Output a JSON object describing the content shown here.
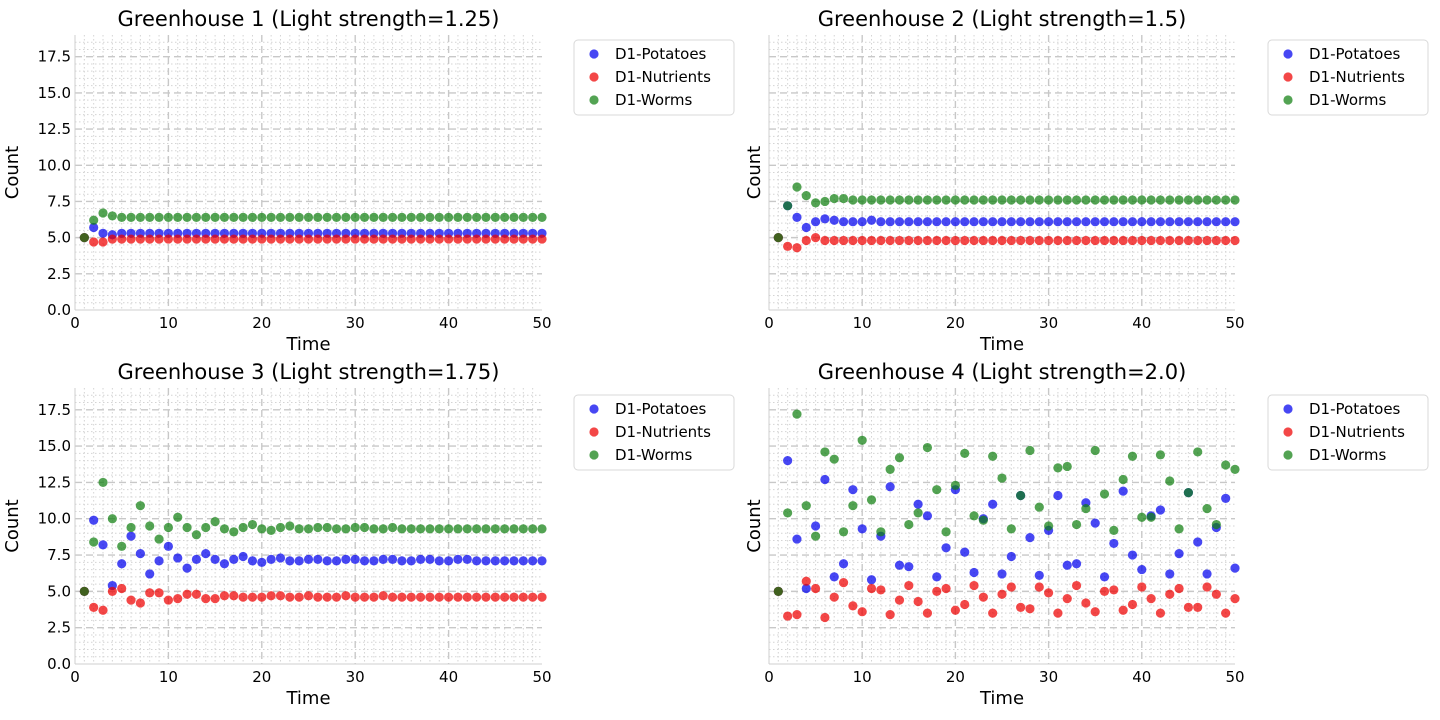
{
  "chart_data": [
    {
      "type": "scatter",
      "title": "Greenhouse 1 (Light strength=1.25)",
      "xlabel": "Time",
      "ylabel": "Count",
      "xlim": [
        0,
        50
      ],
      "ylim": [
        0,
        19
      ],
      "xticks": [
        "0",
        "10",
        "20",
        "30",
        "40",
        "50"
      ],
      "yticks": [
        "0.0",
        "2.5",
        "5.0",
        "7.5",
        "10.0",
        "12.5",
        "15.0",
        "17.5"
      ],
      "show_ytick_labels": true,
      "grid": true,
      "legend": "outside-upper-right",
      "series": [
        {
          "name": "D1-Potatoes",
          "color": "#0000ee",
          "values": [
            5.0,
            5.7,
            5.3,
            5.2,
            5.3,
            5.3,
            5.3,
            5.3,
            5.3,
            5.3,
            5.3,
            5.3,
            5.3,
            5.3,
            5.3,
            5.3,
            5.3,
            5.3,
            5.3,
            5.3,
            5.3,
            5.3,
            5.3,
            5.3,
            5.3,
            5.3,
            5.3,
            5.3,
            5.3,
            5.3,
            5.3,
            5.3,
            5.3,
            5.3,
            5.3,
            5.3,
            5.3,
            5.3,
            5.3,
            5.3,
            5.3,
            5.3,
            5.3,
            5.3,
            5.3,
            5.3,
            5.3,
            5.3,
            5.3,
            5.3
          ]
        },
        {
          "name": "D1-Nutrients",
          "color": "#ee0000",
          "values": [
            5.0,
            4.7,
            4.7,
            4.9,
            4.9,
            4.9,
            4.9,
            4.9,
            4.9,
            4.9,
            4.9,
            4.9,
            4.9,
            4.9,
            4.9,
            4.9,
            4.9,
            4.9,
            4.9,
            4.9,
            4.9,
            4.9,
            4.9,
            4.9,
            4.9,
            4.9,
            4.9,
            4.9,
            4.9,
            4.9,
            4.9,
            4.9,
            4.9,
            4.9,
            4.9,
            4.9,
            4.9,
            4.9,
            4.9,
            4.9,
            4.9,
            4.9,
            4.9,
            4.9,
            4.9,
            4.9,
            4.9,
            4.9,
            4.9,
            4.9
          ]
        },
        {
          "name": "D1-Worms",
          "color": "#108010",
          "values": [
            5.0,
            6.2,
            6.7,
            6.5,
            6.4,
            6.4,
            6.4,
            6.4,
            6.4,
            6.4,
            6.4,
            6.4,
            6.4,
            6.4,
            6.4,
            6.4,
            6.4,
            6.4,
            6.4,
            6.4,
            6.4,
            6.4,
            6.4,
            6.4,
            6.4,
            6.4,
            6.4,
            6.4,
            6.4,
            6.4,
            6.4,
            6.4,
            6.4,
            6.4,
            6.4,
            6.4,
            6.4,
            6.4,
            6.4,
            6.4,
            6.4,
            6.4,
            6.4,
            6.4,
            6.4,
            6.4,
            6.4,
            6.4,
            6.4,
            6.4
          ]
        }
      ]
    },
    {
      "type": "scatter",
      "title": "Greenhouse 2 (Light strength=1.5)",
      "xlabel": "Time",
      "ylabel": "Count",
      "xlim": [
        0,
        50
      ],
      "ylim": [
        0,
        19
      ],
      "xticks": [
        "0",
        "10",
        "20",
        "30",
        "40",
        "50"
      ],
      "yticks": [
        "0.0",
        "2.5",
        "5.0",
        "7.5",
        "10.0",
        "12.5",
        "15.0",
        "17.5"
      ],
      "show_ytick_labels": false,
      "grid": true,
      "legend": "outside-upper-right",
      "series": [
        {
          "name": "D1-Potatoes",
          "color": "#0000ee",
          "values": [
            5.0,
            7.2,
            6.4,
            5.7,
            6.1,
            6.3,
            6.2,
            6.1,
            6.1,
            6.1,
            6.2,
            6.1,
            6.1,
            6.1,
            6.1,
            6.1,
            6.1,
            6.1,
            6.1,
            6.1,
            6.1,
            6.1,
            6.1,
            6.1,
            6.1,
            6.1,
            6.1,
            6.1,
            6.1,
            6.1,
            6.1,
            6.1,
            6.1,
            6.1,
            6.1,
            6.1,
            6.1,
            6.1,
            6.1,
            6.1,
            6.1,
            6.1,
            6.1,
            6.1,
            6.1,
            6.1,
            6.1,
            6.1,
            6.1,
            6.1
          ]
        },
        {
          "name": "D1-Nutrients",
          "color": "#ee0000",
          "values": [
            5.0,
            4.4,
            4.3,
            4.8,
            5.0,
            4.8,
            4.8,
            4.8,
            4.8,
            4.8,
            4.8,
            4.8,
            4.8,
            4.8,
            4.8,
            4.8,
            4.8,
            4.8,
            4.8,
            4.8,
            4.8,
            4.8,
            4.8,
            4.8,
            4.8,
            4.8,
            4.8,
            4.8,
            4.8,
            4.8,
            4.8,
            4.8,
            4.8,
            4.8,
            4.8,
            4.8,
            4.8,
            4.8,
            4.8,
            4.8,
            4.8,
            4.8,
            4.8,
            4.8,
            4.8,
            4.8,
            4.8,
            4.8,
            4.8,
            4.8
          ]
        },
        {
          "name": "D1-Worms",
          "color": "#108010",
          "values": [
            5.0,
            7.2,
            8.5,
            7.9,
            7.4,
            7.5,
            7.7,
            7.7,
            7.6,
            7.6,
            7.6,
            7.6,
            7.6,
            7.6,
            7.6,
            7.6,
            7.6,
            7.6,
            7.6,
            7.6,
            7.6,
            7.6,
            7.6,
            7.6,
            7.6,
            7.6,
            7.6,
            7.6,
            7.6,
            7.6,
            7.6,
            7.6,
            7.6,
            7.6,
            7.6,
            7.6,
            7.6,
            7.6,
            7.6,
            7.6,
            7.6,
            7.6,
            7.6,
            7.6,
            7.6,
            7.6,
            7.6,
            7.6,
            7.6,
            7.6
          ]
        }
      ]
    },
    {
      "type": "scatter",
      "title": "Greenhouse 3 (Light strength=1.75)",
      "xlabel": "Time",
      "ylabel": "Count",
      "xlim": [
        0,
        50
      ],
      "ylim": [
        0,
        19
      ],
      "xticks": [
        "0",
        "10",
        "20",
        "30",
        "40",
        "50"
      ],
      "yticks": [
        "0.0",
        "2.5",
        "5.0",
        "7.5",
        "10.0",
        "12.5",
        "15.0",
        "17.5"
      ],
      "show_ytick_labels": true,
      "grid": true,
      "legend": "outside-upper-right",
      "series": [
        {
          "name": "D1-Potatoes",
          "color": "#0000ee",
          "values": [
            5.0,
            9.9,
            8.2,
            5.4,
            6.9,
            8.8,
            7.6,
            6.2,
            7.1,
            8.1,
            7.3,
            6.6,
            7.2,
            7.6,
            7.2,
            6.9,
            7.2,
            7.4,
            7.1,
            7.0,
            7.2,
            7.3,
            7.1,
            7.1,
            7.2,
            7.2,
            7.1,
            7.1,
            7.2,
            7.2,
            7.1,
            7.1,
            7.2,
            7.2,
            7.1,
            7.1,
            7.2,
            7.2,
            7.1,
            7.1,
            7.2,
            7.2,
            7.1,
            7.1,
            7.1,
            7.1,
            7.1,
            7.1,
            7.1,
            7.1
          ]
        },
        {
          "name": "D1-Nutrients",
          "color": "#ee0000",
          "values": [
            5.0,
            3.9,
            3.7,
            5.0,
            5.2,
            4.4,
            4.2,
            4.9,
            4.9,
            4.4,
            4.5,
            4.8,
            4.8,
            4.5,
            4.5,
            4.7,
            4.7,
            4.6,
            4.6,
            4.6,
            4.7,
            4.7,
            4.6,
            4.6,
            4.7,
            4.6,
            4.6,
            4.6,
            4.7,
            4.6,
            4.6,
            4.6,
            4.7,
            4.6,
            4.6,
            4.6,
            4.6,
            4.6,
            4.6,
            4.6,
            4.6,
            4.6,
            4.6,
            4.6,
            4.6,
            4.6,
            4.6,
            4.6,
            4.6,
            4.6
          ]
        },
        {
          "name": "D1-Worms",
          "color": "#108010",
          "values": [
            5.0,
            8.4,
            12.5,
            10.0,
            8.1,
            9.4,
            10.9,
            9.5,
            8.6,
            9.4,
            10.1,
            9.4,
            8.9,
            9.4,
            9.8,
            9.3,
            9.1,
            9.4,
            9.6,
            9.3,
            9.2,
            9.4,
            9.5,
            9.3,
            9.3,
            9.4,
            9.4,
            9.3,
            9.3,
            9.4,
            9.4,
            9.3,
            9.3,
            9.4,
            9.3,
            9.3,
            9.3,
            9.3,
            9.3,
            9.3,
            9.3,
            9.3,
            9.3,
            9.3,
            9.3,
            9.3,
            9.3,
            9.3,
            9.3,
            9.3
          ]
        }
      ]
    },
    {
      "type": "scatter",
      "title": "Greenhouse 4 (Light strength=2.0)",
      "xlabel": "Time",
      "ylabel": "Count",
      "xlim": [
        0,
        50
      ],
      "ylim": [
        0,
        19
      ],
      "xticks": [
        "0",
        "10",
        "20",
        "30",
        "40",
        "50"
      ],
      "yticks": [
        "0.0",
        "2.5",
        "5.0",
        "7.5",
        "10.0",
        "12.5",
        "15.0",
        "17.5"
      ],
      "show_ytick_labels": false,
      "grid": true,
      "legend": "outside-upper-right",
      "series": [
        {
          "name": "D1-Potatoes",
          "color": "#0000ee",
          "values": [
            5.0,
            14.0,
            8.6,
            5.2,
            9.5,
            12.7,
            6.0,
            6.9,
            12.0,
            9.3,
            5.8,
            8.8,
            12.2,
            6.8,
            6.7,
            11.0,
            10.2,
            6.0,
            8.0,
            12.0,
            7.7,
            6.3,
            10.0,
            11.0,
            6.2,
            7.4,
            11.6,
            8.7,
            6.1,
            9.2,
            11.6,
            6.8,
            6.9,
            11.1,
            9.7,
            6.0,
            8.3,
            11.9,
            7.5,
            6.5,
            10.2,
            10.6,
            6.2,
            7.6,
            11.8,
            8.4,
            6.2,
            9.4,
            11.4,
            6.6
          ]
        },
        {
          "name": "D1-Nutrients",
          "color": "#ee0000",
          "values": [
            5.0,
            3.3,
            3.4,
            5.7,
            5.2,
            3.2,
            4.6,
            5.6,
            4.0,
            3.6,
            5.2,
            5.1,
            3.4,
            4.4,
            5.4,
            4.3,
            3.5,
            5.0,
            5.2,
            3.7,
            4.1,
            5.4,
            4.6,
            3.5,
            4.8,
            5.3,
            3.9,
            3.8,
            5.3,
            4.9,
            3.5,
            4.5,
            5.4,
            4.2,
            3.6,
            5.0,
            5.1,
            3.7,
            4.1,
            5.3,
            4.5,
            3.5,
            4.8,
            5.2,
            3.9,
            3.9,
            5.3,
            4.8,
            3.5,
            4.5
          ]
        },
        {
          "name": "D1-Worms",
          "color": "#108010",
          "values": [
            5.0,
            10.4,
            17.2,
            10.9,
            8.8,
            14.6,
            14.1,
            9.1,
            10.9,
            15.4,
            11.3,
            9.1,
            13.4,
            14.2,
            9.6,
            10.4,
            14.9,
            12.0,
            9.1,
            12.3,
            14.5,
            10.2,
            9.9,
            14.3,
            12.8,
            9.3,
            11.6,
            14.7,
            10.8,
            9.5,
            13.5,
            13.6,
            9.6,
            10.7,
            14.7,
            11.7,
            9.2,
            12.7,
            14.3,
            10.1,
            10.1,
            14.4,
            12.6,
            9.3,
            11.8,
            14.6,
            10.7,
            9.6,
            13.7,
            13.4
          ]
        }
      ]
    }
  ]
}
